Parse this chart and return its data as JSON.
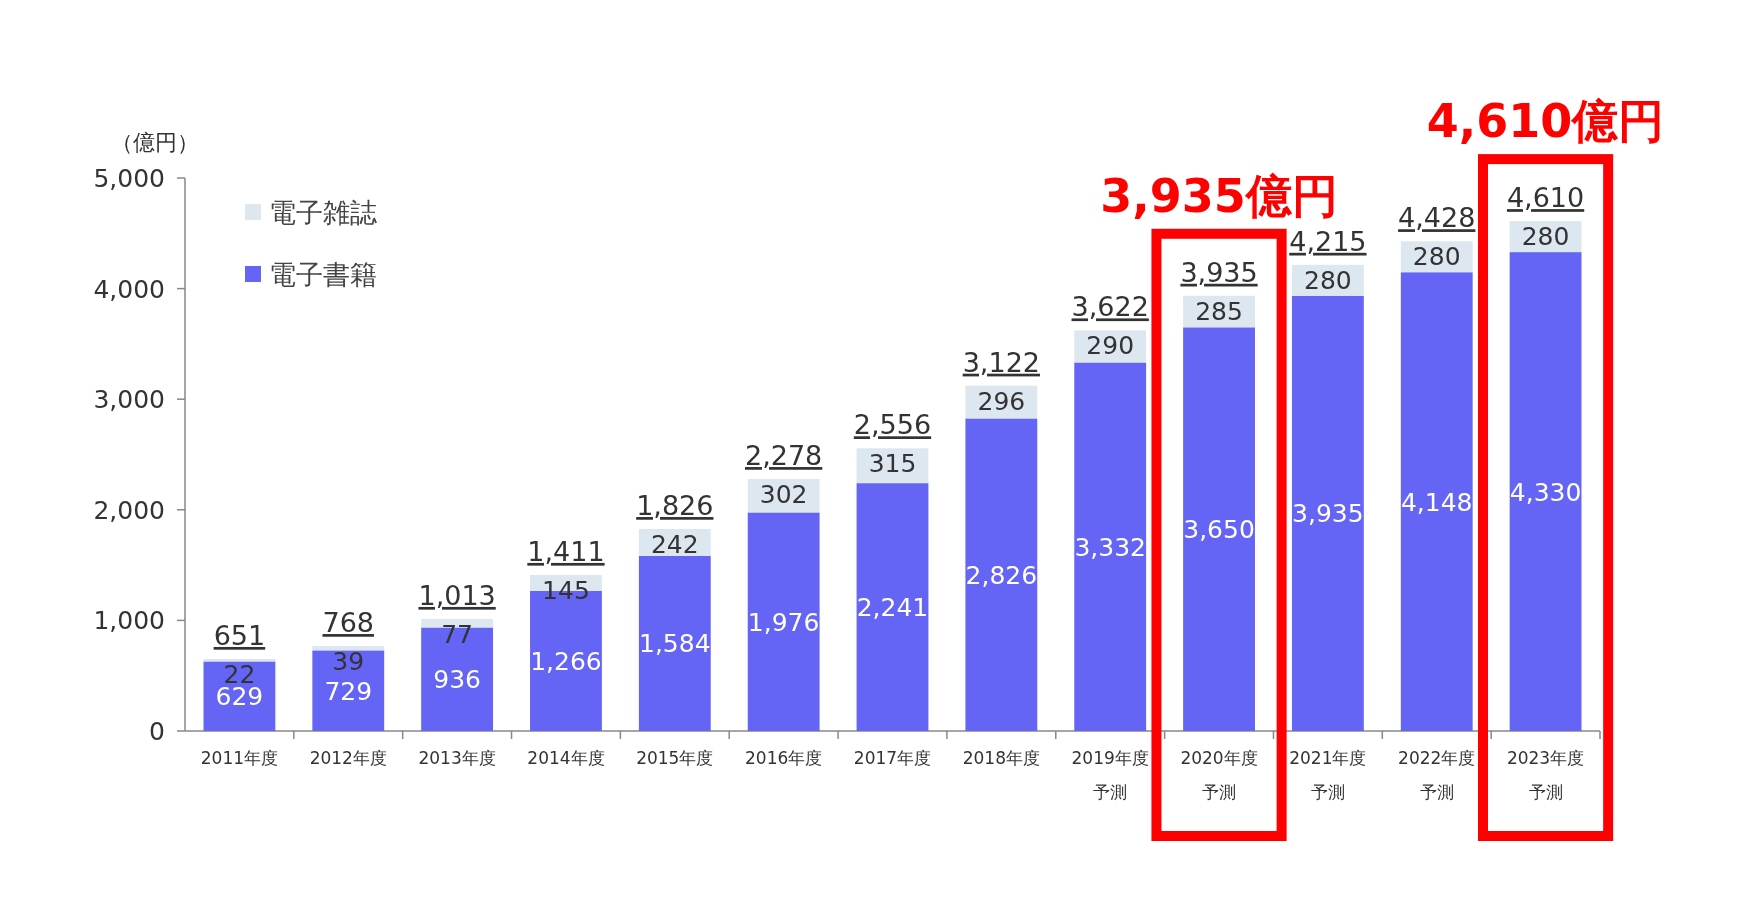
{
  "chart_data": {
    "type": "bar",
    "stacked": true,
    "ylabel": "（億円）",
    "categories": [
      "2011年度",
      "2012年度",
      "2013年度",
      "2014年度",
      "2015年度",
      "2016年度",
      "2017年度",
      "2018年度",
      "2019年度予測",
      "2020年度予測",
      "2021年度予測",
      "2022年度予測",
      "2023年度予測"
    ],
    "series": [
      {
        "name": "電子書籍",
        "color": "#6464f5",
        "values": [
          629,
          729,
          936,
          1266,
          1584,
          1976,
          2241,
          2826,
          3332,
          3650,
          3935,
          4148,
          4330
        ],
        "value_labels": [
          "629",
          "729",
          "936",
          "1,266",
          "1,584",
          "1,976",
          "2,241",
          "2,826",
          "3,332",
          "3,650",
          "3,935",
          "4,148",
          "4,330"
        ]
      },
      {
        "name": "電子雑誌",
        "color": "#dde7f0",
        "values": [
          22,
          39,
          77,
          145,
          242,
          302,
          315,
          296,
          290,
          285,
          280,
          280,
          280
        ],
        "value_labels": [
          "22",
          "39",
          "77",
          "145",
          "242",
          "302",
          "315",
          "296",
          "290",
          "285",
          "280",
          "280",
          "280"
        ]
      }
    ],
    "totals": [
      "651",
      "768",
      "1,013",
      "1,411",
      "1,826",
      "2,278",
      "2,556",
      "3,122",
      "3,622",
      "3,935",
      "4,215",
      "4,428",
      "4,610"
    ],
    "ylim": [
      0,
      5000
    ],
    "yticks": [
      {
        "value": 0,
        "label": "0"
      },
      {
        "value": 1000,
        "label": "1,000"
      },
      {
        "value": 2000,
        "label": "2,000"
      },
      {
        "value": 3000,
        "label": "3,000"
      },
      {
        "value": 4000,
        "label": "4,000"
      },
      {
        "value": 5000,
        "label": "5,000"
      }
    ],
    "legend": "top left",
    "grid": false,
    "annotations": [
      {
        "text": "3,935億円",
        "x": "2020年度予測",
        "y": 3935
      },
      {
        "text": "4,610億円",
        "x": "2023年度予測",
        "y": 4610
      }
    ]
  }
}
